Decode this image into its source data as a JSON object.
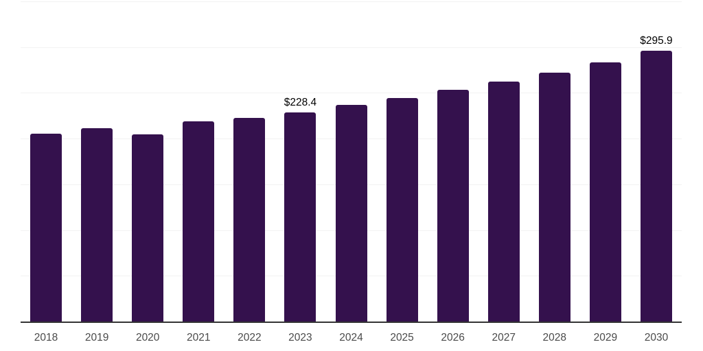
{
  "chart_data": {
    "type": "bar",
    "title": "",
    "xlabel": "",
    "ylabel": "",
    "categories": [
      "2018",
      "2019",
      "2020",
      "2021",
      "2022",
      "2023",
      "2024",
      "2025",
      "2026",
      "2027",
      "2028",
      "2029",
      "2030"
    ],
    "values": [
      205.0,
      211.3,
      204.6,
      218.6,
      222.6,
      228.4,
      236.9,
      244.4,
      253.4,
      262.4,
      272.1,
      283.4,
      295.9
    ],
    "annotations": [
      {
        "category": "2023",
        "text": "$228.4"
      },
      {
        "category": "2030",
        "text": "$295.9"
      }
    ],
    "ylim": [
      0,
      350
    ],
    "grid_interval": 50,
    "grid": true,
    "y_tick_labels_visible": false,
    "legend": false
  },
  "colors": {
    "bar": "#34114d",
    "gridline": "#f2f2f2",
    "axis_line": "#333333",
    "tick_label": "#4a4a4a",
    "data_label": "#000000",
    "background": "#ffffff"
  }
}
